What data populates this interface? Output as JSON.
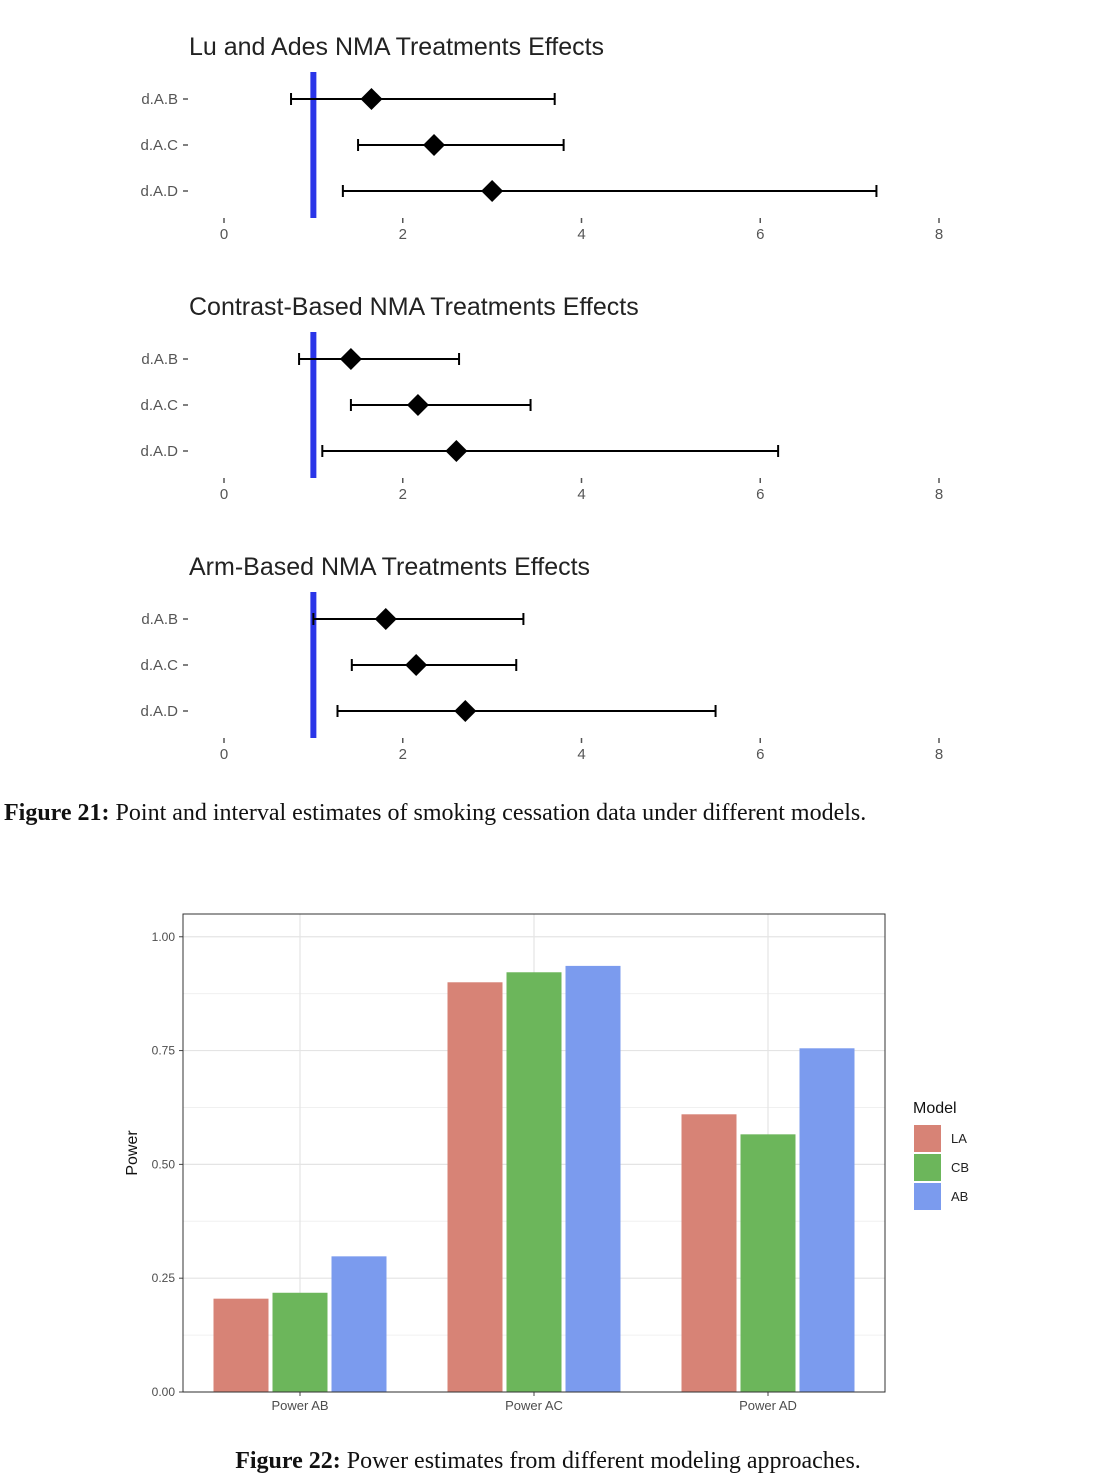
{
  "forest": {
    "panels": [
      {
        "title": "Lu and Ades NMA Treatments Effects",
        "rows": [
          {
            "label": "d.A.B",
            "est": 1.65,
            "lo": 0.75,
            "hi": 3.7
          },
          {
            "label": "d.A.C",
            "est": 2.35,
            "lo": 1.5,
            "hi": 3.8
          },
          {
            "label": "d.A.D",
            "est": 3.0,
            "lo": 1.33,
            "hi": 7.3
          }
        ]
      },
      {
        "title": "Contrast-Based NMA Treatments Effects",
        "rows": [
          {
            "label": "d.A.B",
            "est": 1.42,
            "lo": 0.84,
            "hi": 2.63
          },
          {
            "label": "d.A.C",
            "est": 2.17,
            "lo": 1.42,
            "hi": 3.43
          },
          {
            "label": "d.A.D",
            "est": 2.6,
            "lo": 1.1,
            "hi": 6.2
          }
        ]
      },
      {
        "title": "Arm-Based NMA Treatments Effects",
        "rows": [
          {
            "label": "d.A.B",
            "est": 1.81,
            "lo": 1.0,
            "hi": 3.35
          },
          {
            "label": "d.A.C",
            "est": 2.15,
            "lo": 1.43,
            "hi": 3.27
          },
          {
            "label": "d.A.D",
            "est": 2.7,
            "lo": 1.27,
            "hi": 5.5
          }
        ]
      }
    ],
    "xticks": [
      "0",
      "2",
      "4",
      "6",
      "8"
    ],
    "reference_line": 1,
    "xlim": [
      0,
      8
    ],
    "colors": {
      "reference": "#2a35e8",
      "marker": "#000000",
      "text": "#555555",
      "title": "#222222"
    }
  },
  "caption21": {
    "label": "Figure 21:",
    "text": "Point and interval estimates of smoking cessation data under different models."
  },
  "chart_data": {
    "type": "bar",
    "categories": [
      "Power AB",
      "Power AC",
      "Power AD"
    ],
    "series": [
      {
        "name": "LA",
        "values": [
          0.205,
          0.9,
          0.61
        ],
        "color": "#d78376"
      },
      {
        "name": "CB",
        "values": [
          0.218,
          0.922,
          0.566
        ],
        "color": "#6cb65b"
      },
      {
        "name": "AB",
        "values": [
          0.298,
          0.936,
          0.755
        ],
        "color": "#7b9bee"
      }
    ],
    "ylabel": "Power",
    "xlabel": "",
    "ylim": [
      0,
      1.05
    ],
    "yticks": [
      "0.00",
      "0.25",
      "0.50",
      "0.75",
      "1.00"
    ],
    "legend_title": "Model",
    "legend_position": "right",
    "grid": true
  },
  "caption22": {
    "label": "Figure 22:",
    "text": "Power estimates from different modeling approaches."
  }
}
